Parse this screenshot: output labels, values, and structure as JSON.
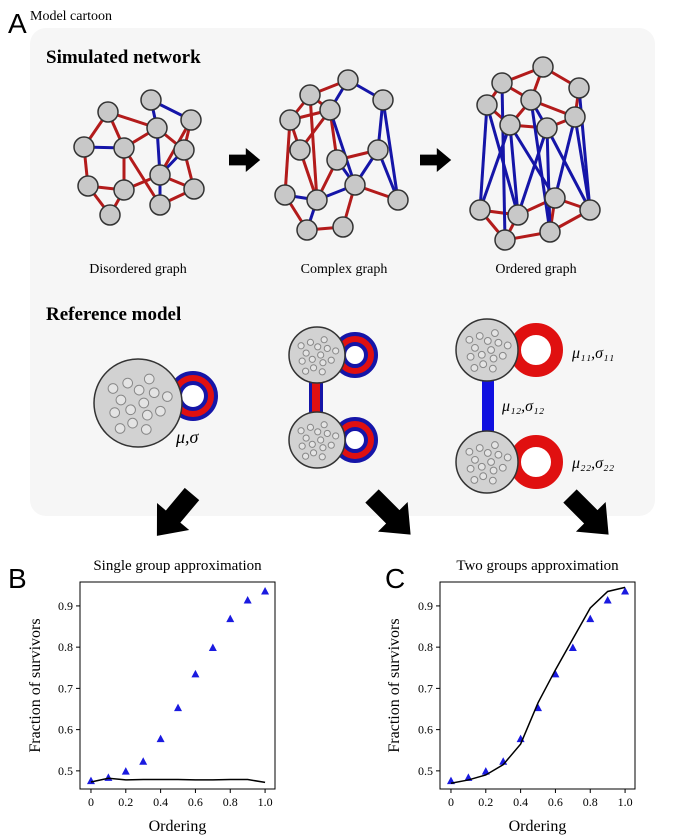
{
  "panel_a": {
    "label": "A",
    "title": "Model cartoon",
    "simulated_network": {
      "heading": "Simulated network",
      "graphs": [
        "Disordered graph",
        "Complex graph",
        "Ordered graph"
      ]
    },
    "reference_model": {
      "heading": "Reference model",
      "params": [
        "μ,σ",
        "μ₁₁,σ₁₁",
        "μ₁₂,σ₁₂",
        "μ₂₂,σ₂₂"
      ]
    }
  },
  "chart_data": [
    {
      "panel": "B",
      "type": "line",
      "title": "Single group approximation",
      "x_label": "Ordering",
      "y_label": "Fraction of survivors",
      "x": [
        0,
        0.1,
        0.2,
        0.3,
        0.4,
        0.5,
        0.6,
        0.7,
        0.8,
        0.9,
        1
      ],
      "series": [
        {
          "color": "#1a1ae0",
          "marker": "^",
          "values": [
            0.475,
            0.483,
            0.498,
            0.522,
            0.577,
            0.652,
            0.734,
            0.798,
            0.868,
            0.913,
            0.935
          ]
        },
        {
          "color": "#000000",
          "values": [
            0.473,
            0.482,
            0.478,
            0.479,
            0.479,
            0.479,
            0.478,
            0.478,
            0.479,
            0.479,
            0.472
          ]
        }
      ],
      "xlim": [
        -0.063,
        1.057
      ],
      "ylim": [
        0.456,
        0.958
      ],
      "xticks": [
        0,
        0.2,
        0.4,
        0.6,
        0.8,
        {
          "value": 1,
          "label": "1.0"
        }
      ],
      "yticks": [
        0.5,
        0.6,
        0.7,
        0.8,
        0.9
      ]
    },
    {
      "panel": "C",
      "type": "line",
      "title": "Two groups approximation",
      "x_label": "Ordering",
      "y_label": "Fraction of survivors",
      "x": [
        0,
        0.1,
        0.2,
        0.3,
        0.4,
        0.5,
        0.6,
        0.7,
        0.8,
        0.9,
        1
      ],
      "series": [
        {
          "color": "#1a1ae0",
          "marker": "^",
          "values": [
            0.475,
            0.483,
            0.498,
            0.522,
            0.577,
            0.652,
            0.734,
            0.798,
            0.868,
            0.913,
            0.935
          ]
        },
        {
          "color": "#000000",
          "values": [
            0.47,
            0.478,
            0.49,
            0.515,
            0.565,
            0.665,
            0.745,
            0.82,
            0.895,
            0.935,
            0.945
          ]
        }
      ],
      "xlim": [
        -0.063,
        1.057
      ],
      "ylim": [
        0.456,
        0.958
      ],
      "xticks": [
        0,
        0.2,
        0.4,
        0.6,
        0.8,
        {
          "value": 1,
          "label": "1.0"
        }
      ],
      "yticks": [
        0.5,
        0.6,
        0.7,
        0.8,
        0.9
      ]
    }
  ]
}
